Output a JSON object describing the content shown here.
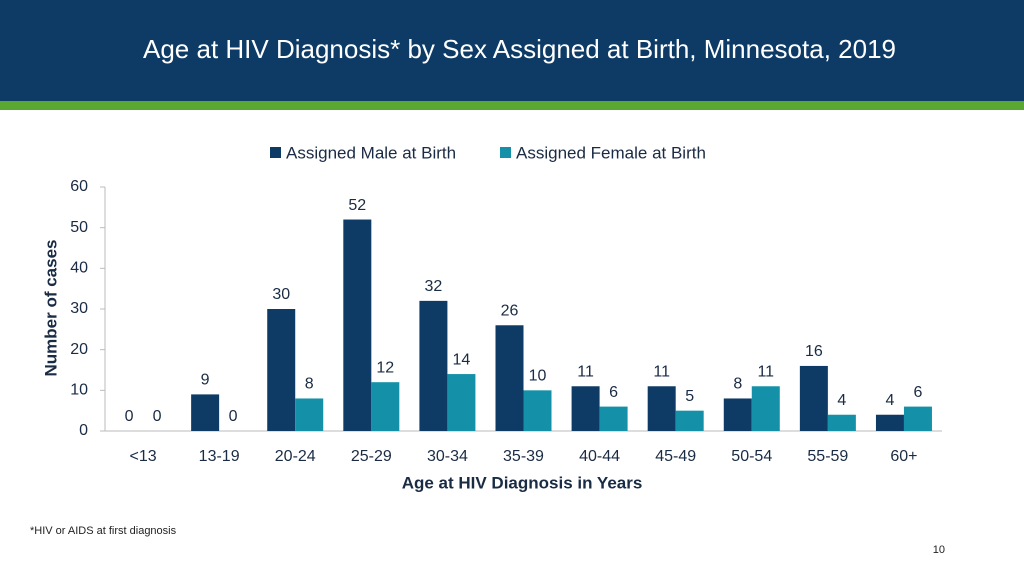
{
  "chart_data": {
    "type": "bar",
    "title": "Age at HIV Diagnosis* by Sex Assigned at Birth, Minnesota, 2019",
    "x_label": "Age at HIV Diagnosis in Years",
    "y_label": "Number of cases",
    "categories": [
      "<13",
      "13-19",
      "20-24",
      "25-29",
      "30-34",
      "35-39",
      "40-44",
      "45-49",
      "50-54",
      "55-59",
      "60+"
    ],
    "series": [
      {
        "name": "Assigned Male at Birth",
        "color": "#0e3a66",
        "values": [
          0,
          9,
          30,
          52,
          32,
          26,
          11,
          11,
          8,
          16,
          4
        ]
      },
      {
        "name": "Assigned Female at Birth",
        "color": "#1490a8",
        "values": [
          0,
          0,
          8,
          12,
          14,
          10,
          6,
          5,
          11,
          4,
          6
        ]
      }
    ],
    "ylim": [
      0,
      60
    ],
    "yticks": [
      0,
      10,
      20,
      30,
      40,
      50,
      60
    ],
    "grid": false,
    "legend": "top"
  },
  "footnote": "*HIV or AIDS at first diagnosis",
  "page_number": "10"
}
